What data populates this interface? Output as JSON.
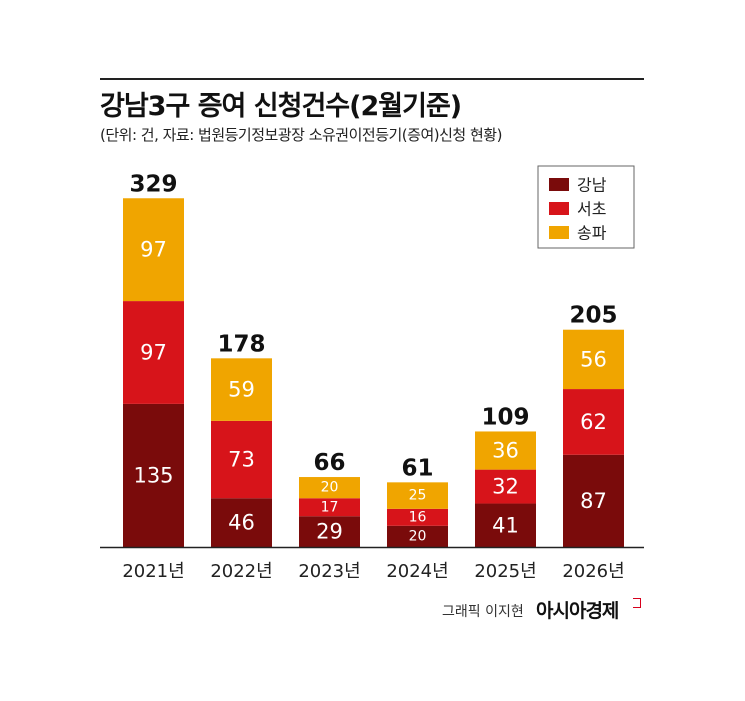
{
  "header": {
    "title": "강남3구 증여 신청건수(2월기준)",
    "subtitle": "(단위: 건, 자료: 법원등기정보광장 소유권이전등기(증여)신청 현황)"
  },
  "footer": {
    "credit": "그래픽 이지현",
    "brand": "아시아경제"
  },
  "chart_data": {
    "type": "bar",
    "stacked": true,
    "categories": [
      "2021년",
      "2022년",
      "2023년",
      "2024년",
      "2025년",
      "2026년"
    ],
    "series": [
      {
        "name": "강남",
        "color": "#7a0b0b",
        "values": [
          135,
          46,
          29,
          20,
          41,
          87
        ]
      },
      {
        "name": "서초",
        "color": "#d7141a",
        "values": [
          97,
          73,
          17,
          16,
          32,
          62
        ]
      },
      {
        "name": "송파",
        "color": "#f0a500",
        "values": [
          97,
          59,
          20,
          25,
          36,
          56
        ]
      }
    ],
    "totals": [
      329,
      178,
      66,
      61,
      109,
      205
    ],
    "legend_position": "top-right",
    "grid": false
  }
}
